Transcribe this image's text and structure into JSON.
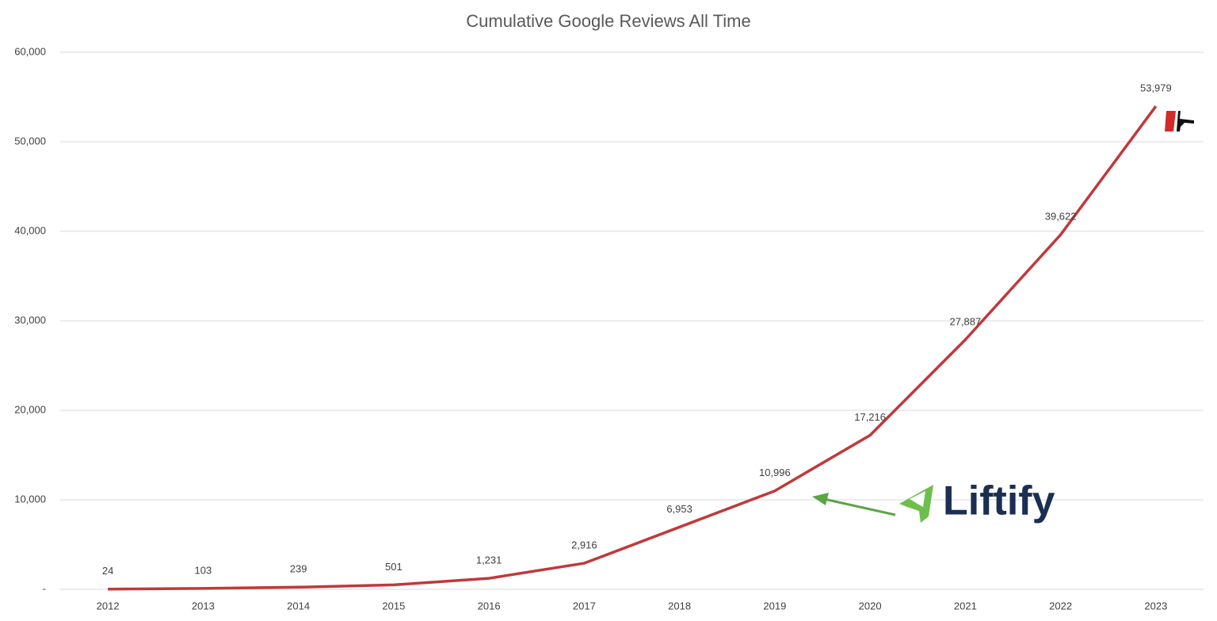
{
  "chart_data": {
    "type": "line",
    "title": "Cumulative Google Reviews All Time",
    "categories": [
      "2012",
      "2013",
      "2014",
      "2015",
      "2016",
      "2017",
      "2018",
      "2019",
      "2020",
      "2021",
      "2022",
      "2023"
    ],
    "values": [
      24,
      103,
      239,
      501,
      1231,
      2916,
      6953,
      10996,
      17216,
      27887,
      39622,
      53979
    ],
    "value_labels": [
      "24",
      "103",
      "239",
      "501",
      "1,231",
      "2,916",
      "6,953",
      "10,996",
      "17,216",
      "27,887",
      "39,622",
      "53,979"
    ],
    "color": "#c0393b",
    "ylim": [
      0,
      60000
    ],
    "yticks": [
      {
        "value": 0,
        "label": "-"
      },
      {
        "value": 10000,
        "label": "10,000"
      },
      {
        "value": 20000,
        "label": "20,000"
      },
      {
        "value": 30000,
        "label": "30,000"
      },
      {
        "value": 40000,
        "label": "40,000"
      },
      {
        "value": 50000,
        "label": "50,000"
      },
      {
        "value": 60000,
        "label": "60,000"
      }
    ],
    "grid": true,
    "annotation": "Liftify"
  }
}
